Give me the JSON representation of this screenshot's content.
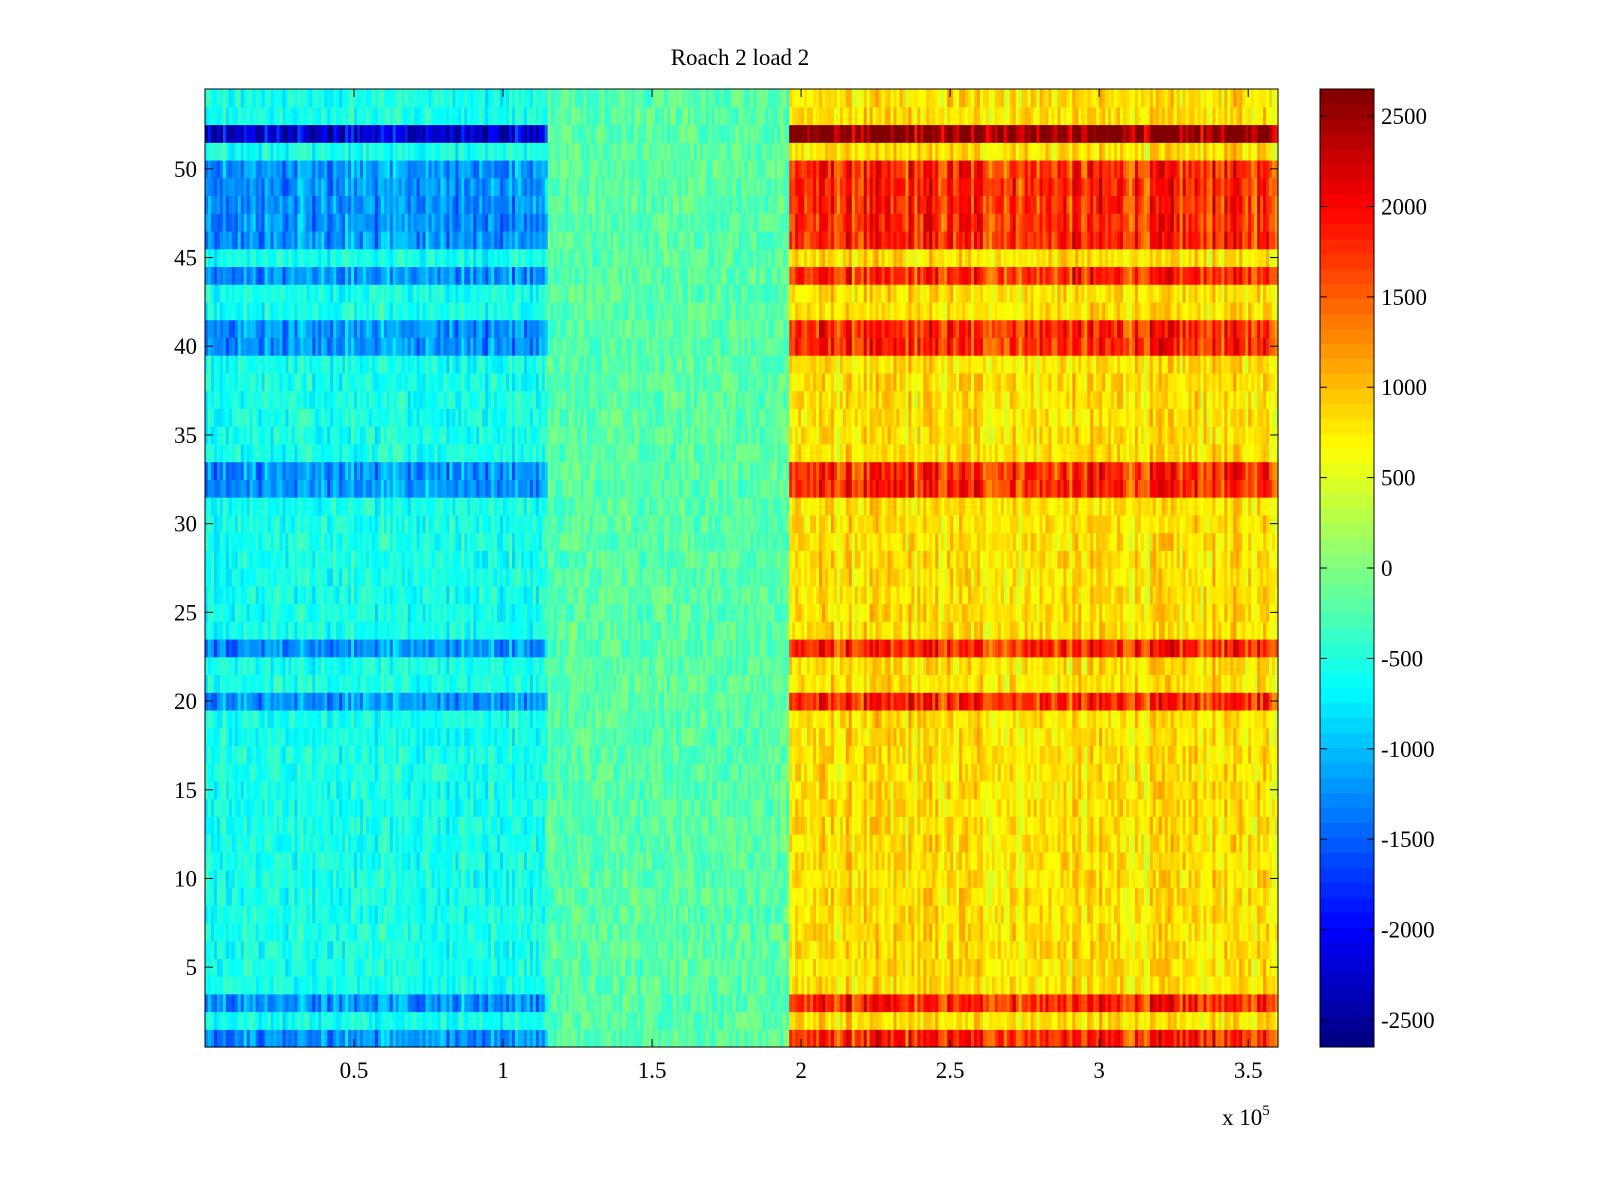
{
  "chart_data": {
    "type": "heatmap",
    "title": "Roach 2 load 2",
    "xlabel": "",
    "ylabel": "",
    "xlim": [
      0,
      360000
    ],
    "ylim": [
      0.5,
      54.5
    ],
    "x_ticks": [
      50000,
      100000,
      150000,
      200000,
      250000,
      300000,
      350000
    ],
    "x_tick_labels": [
      "0.5",
      "1",
      "1.5",
      "2",
      "2.5",
      "3",
      "3.5"
    ],
    "x_exponent_label": "x 10",
    "x_exponent_power": "5",
    "y_ticks": [
      5,
      10,
      15,
      20,
      25,
      30,
      35,
      40,
      45,
      50
    ],
    "y_tick_labels": [
      "5",
      "10",
      "15",
      "20",
      "25",
      "30",
      "35",
      "40",
      "45",
      "50"
    ],
    "rows": 54,
    "colorbar": {
      "colormap": "jet",
      "clim": [
        -2650,
        2650
      ],
      "ticks": [
        -2500,
        -2000,
        -1500,
        -1000,
        -500,
        0,
        500,
        1000,
        1500,
        2000,
        2500
      ],
      "tick_labels": [
        "-2500",
        "-2000",
        "-1500",
        "-1000",
        "-500",
        "0",
        "500",
        "1000",
        "1500",
        "2000",
        "2500"
      ]
    },
    "segments": [
      {
        "x_range": [
          0,
          115000
        ],
        "baseline": -550
      },
      {
        "x_range": [
          115000,
          196000
        ],
        "baseline": -200
      },
      {
        "x_range": [
          196000,
          360000
        ],
        "baseline": 800
      }
    ],
    "strong_rows": {
      "rows": [
        1,
        3,
        20,
        23,
        32,
        33,
        40,
        41,
        44,
        46,
        47,
        48,
        49,
        50
      ],
      "left_value": -1200,
      "right_value": 1750
    },
    "extreme_row": {
      "row": 52,
      "left_value": -2200,
      "right_value": 2650
    }
  }
}
